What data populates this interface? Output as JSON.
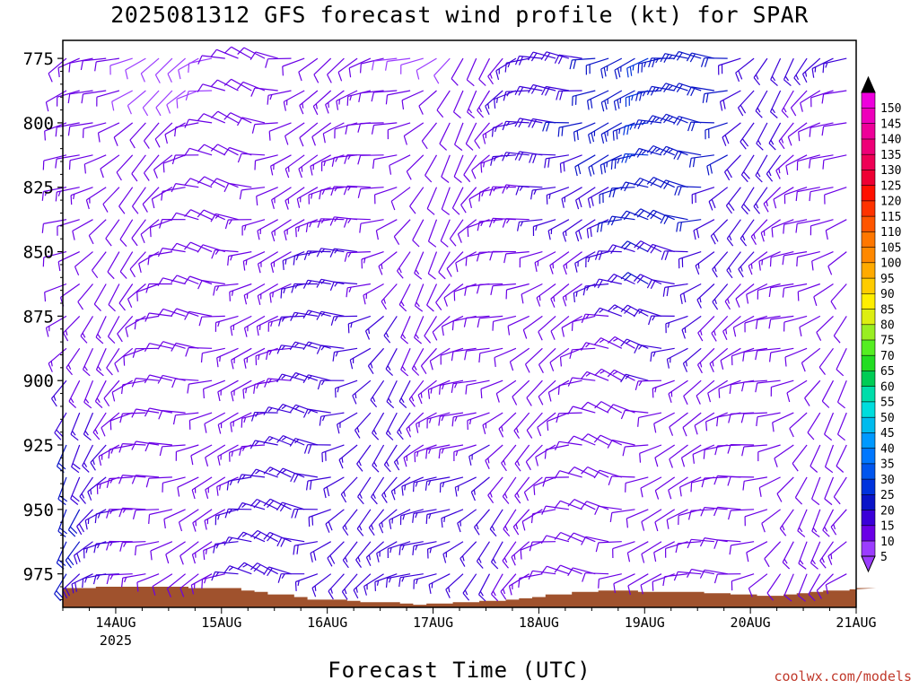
{
  "chart_data": {
    "type": "wind-barb time-height profile",
    "title": "2025081312 GFS forecast wind profile (kt) for SPAR",
    "xlabel": "Forecast Time (UTC)",
    "ylabel": "",
    "units": "kt",
    "y_ticks": [
      "775",
      "800",
      "825",
      "850",
      "875",
      "900",
      "925",
      "950",
      "975"
    ],
    "y_range": [
      768,
      988
    ],
    "x_ticks": [
      {
        "label": "14AUG",
        "sub": "2025",
        "hour": 12
      },
      {
        "label": "15AUG",
        "sub": "",
        "hour": 36
      },
      {
        "label": "16AUG",
        "sub": "",
        "hour": 60
      },
      {
        "label": "17AUG",
        "sub": "",
        "hour": 84
      },
      {
        "label": "18AUG",
        "sub": "",
        "hour": 108
      },
      {
        "label": "19AUG",
        "sub": "",
        "hour": 132
      },
      {
        "label": "20AUG",
        "sub": "",
        "hour": 156
      },
      {
        "label": "21AUG",
        "sub": "",
        "hour": 180
      }
    ],
    "x_range_hours": [
      0,
      180
    ],
    "time_step_hours": 3,
    "levels_hpa": [
      775,
      787.5,
      800,
      812.5,
      825,
      837.5,
      850,
      862.5,
      875,
      887.5,
      900,
      912.5,
      925,
      937.5,
      950,
      962.5,
      975
    ],
    "surface_pressure_hpa": [
      980.5,
      980.5,
      980.5,
      980,
      980,
      980,
      980,
      980,
      980,
      980,
      980.5,
      980.5,
      980.5,
      980.5,
      981.5,
      982,
      983,
      983,
      984,
      985,
      985,
      985,
      985.5,
      986,
      986,
      986,
      986.5,
      987,
      986.5,
      986.5,
      986,
      986,
      985.5,
      985.5,
      985,
      984.5,
      984,
      983,
      983,
      982,
      982,
      981.5,
      981.5,
      981.5,
      982,
      982,
      982,
      982,
      982,
      982.5,
      982.5,
      983,
      983,
      983.5,
      983.5,
      983,
      982.5,
      982,
      981.5,
      981.5,
      981,
      981,
      980.5,
      980.5,
      980.5
    ],
    "colorbar": {
      "labels": [
        "5",
        "10",
        "15",
        "20",
        "25",
        "30",
        "35",
        "40",
        "45",
        "50",
        "55",
        "60",
        "65",
        "70",
        "75",
        "80",
        "85",
        "90",
        "95",
        "100",
        "105",
        "110",
        "115",
        "120",
        "125",
        "130",
        "135",
        "140",
        "145",
        "150"
      ],
      "colors": [
        "#9b3cff",
        "#6a00e6",
        "#3a00d8",
        "#0a14c8",
        "#0033dd",
        "#0055ee",
        "#0077ff",
        "#0099ff",
        "#00bbee",
        "#00dddd",
        "#00ddaa",
        "#00cc55",
        "#22dd22",
        "#55ee22",
        "#99ee22",
        "#ddee11",
        "#ffee00",
        "#ffcc00",
        "#ffaa00",
        "#ff8800",
        "#ff7700",
        "#ff5500",
        "#ff3300",
        "#ff1100",
        "#ee0033",
        "#ee0055",
        "#ee0077",
        "#ee0099",
        "#ee00bb",
        "#ee00dd"
      ]
    },
    "sample_winds": {
      "note_levels": "rows follow levels_hpa, columns every 12 h",
      "speed_kt": [
        [
          10,
          10,
          8,
          10,
          12,
          12,
          10,
          8,
          12,
          18,
          20,
          25,
          22,
          18,
          15
        ],
        [
          12,
          10,
          8,
          10,
          12,
          14,
          12,
          10,
          14,
          18,
          20,
          25,
          22,
          18,
          12
        ],
        [
          12,
          10,
          10,
          12,
          12,
          12,
          10,
          10,
          12,
          18,
          22,
          25,
          22,
          18,
          12
        ],
        [
          12,
          10,
          10,
          12,
          12,
          14,
          12,
          10,
          12,
          18,
          20,
          25,
          22,
          18,
          12
        ],
        [
          14,
          12,
          10,
          12,
          12,
          14,
          12,
          12,
          12,
          15,
          18,
          22,
          20,
          18,
          10
        ],
        [
          12,
          12,
          10,
          12,
          14,
          14,
          12,
          12,
          12,
          15,
          18,
          22,
          20,
          15,
          10
        ],
        [
          12,
          12,
          10,
          12,
          14,
          16,
          14,
          12,
          12,
          12,
          15,
          20,
          18,
          15,
          10
        ],
        [
          12,
          12,
          10,
          12,
          14,
          16,
          14,
          12,
          12,
          12,
          15,
          20,
          18,
          12,
          10
        ],
        [
          14,
          12,
          10,
          12,
          14,
          16,
          16,
          12,
          12,
          12,
          12,
          18,
          15,
          12,
          10
        ],
        [
          14,
          12,
          10,
          12,
          14,
          16,
          16,
          12,
          12,
          12,
          12,
          15,
          15,
          10,
          10
        ],
        [
          15,
          12,
          10,
          12,
          14,
          16,
          16,
          14,
          12,
          12,
          12,
          15,
          12,
          10,
          10
        ],
        [
          18,
          12,
          10,
          12,
          15,
          16,
          16,
          14,
          14,
          12,
          12,
          12,
          12,
          10,
          10
        ],
        [
          20,
          14,
          10,
          12,
          15,
          18,
          16,
          14,
          15,
          12,
          12,
          12,
          12,
          10,
          12
        ],
        [
          20,
          14,
          10,
          14,
          16,
          18,
          16,
          15,
          15,
          12,
          12,
          12,
          10,
          10,
          12
        ],
        [
          22,
          15,
          10,
          14,
          18,
          18,
          16,
          15,
          16,
          12,
          12,
          12,
          10,
          10,
          14
        ],
        [
          22,
          15,
          10,
          14,
          18,
          18,
          16,
          15,
          16,
          12,
          12,
          10,
          10,
          10,
          14
        ],
        [
          20,
          15,
          10,
          14,
          18,
          16,
          15,
          15,
          15,
          12,
          10,
          10,
          10,
          10,
          12
        ]
      ]
    },
    "colors": {
      "ground": "#a0522d",
      "frame": "#000000",
      "credit": "#c0392b"
    }
  },
  "credit": "coolwx.com/models"
}
